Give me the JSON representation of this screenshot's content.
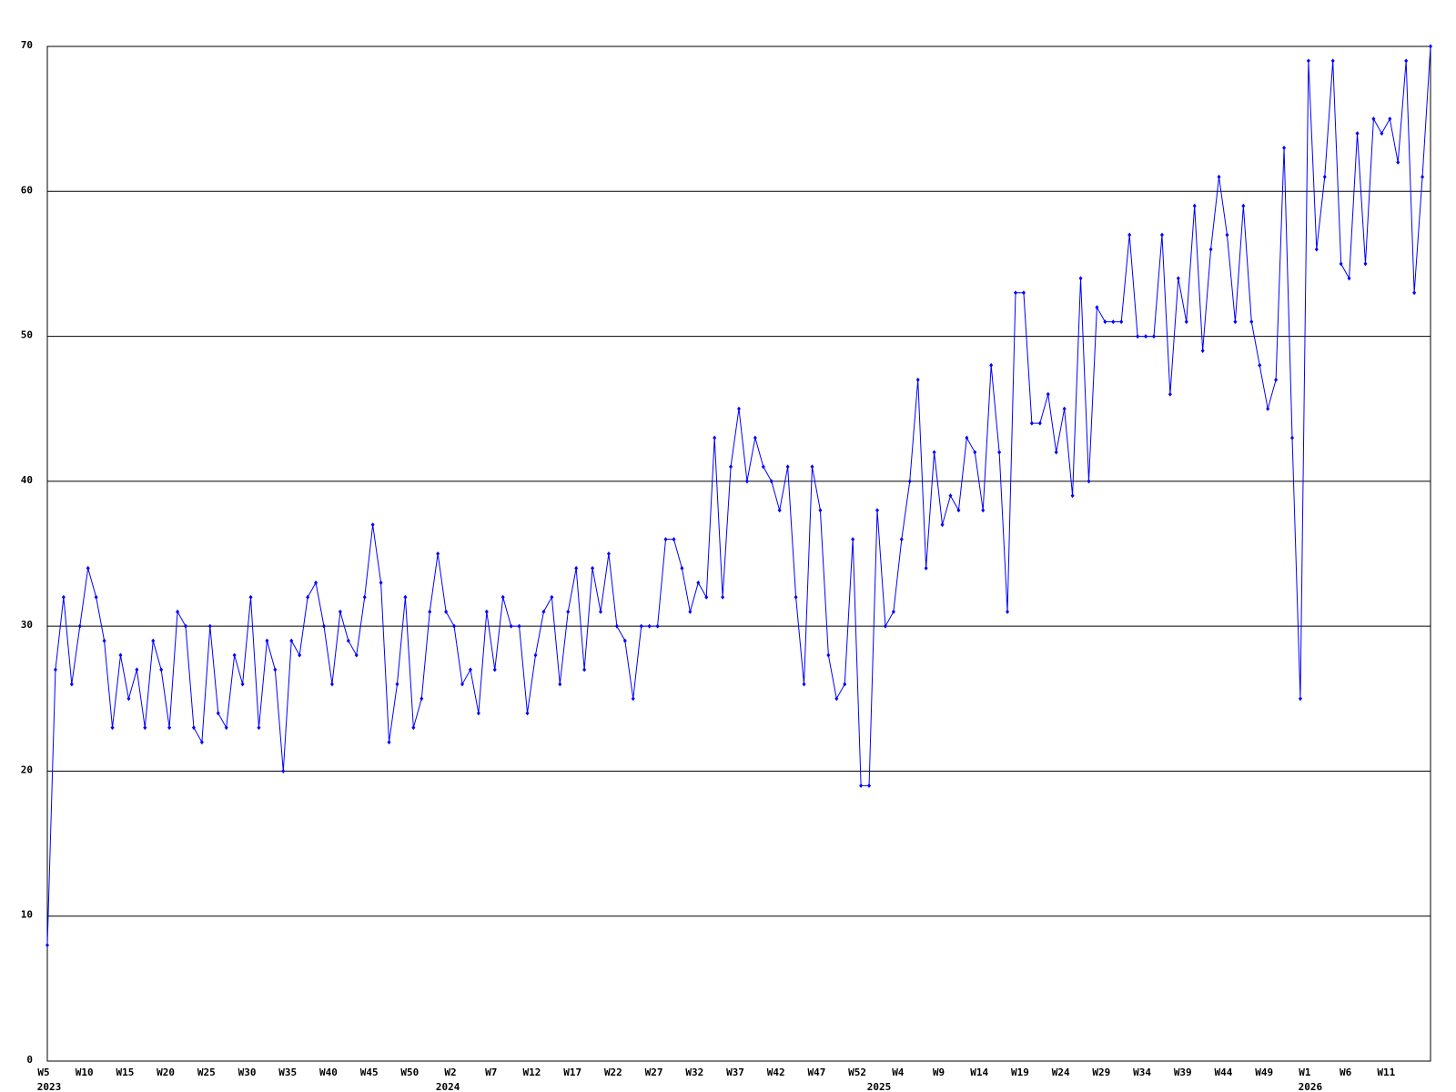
{
  "chart_data": {
    "type": "line",
    "color": "#0000ff",
    "grid": true,
    "ylim": [
      0,
      70
    ],
    "yticks": [
      0,
      10,
      20,
      30,
      40,
      50,
      60,
      70
    ],
    "categories": [
      "W5",
      null,
      null,
      null,
      null,
      "W10",
      null,
      null,
      null,
      null,
      "W15",
      null,
      null,
      null,
      null,
      "W20",
      null,
      null,
      null,
      null,
      "W25",
      null,
      null,
      null,
      null,
      "W30",
      null,
      null,
      null,
      null,
      "W35",
      null,
      null,
      null,
      null,
      "W40",
      null,
      null,
      null,
      null,
      "W45",
      null,
      null,
      null,
      null,
      "W50",
      null,
      null,
      null,
      null,
      "W2",
      null,
      null,
      null,
      null,
      "W7",
      null,
      null,
      null,
      null,
      "W12",
      null,
      null,
      null,
      null,
      "W17",
      null,
      null,
      null,
      null,
      "W22",
      null,
      null,
      null,
      null,
      "W27",
      null,
      null,
      null,
      null,
      "W32",
      null,
      null,
      null,
      null,
      "W37",
      null,
      null,
      null,
      null,
      "W42",
      null,
      null,
      null,
      null,
      "W47",
      null,
      null,
      null,
      null,
      "W52",
      null,
      null,
      null,
      null,
      "W4",
      null,
      null,
      null,
      null,
      "W9",
      null,
      null,
      null,
      null,
      "W14",
      null,
      null,
      null,
      null,
      "W19",
      null,
      null,
      null,
      null,
      "W24",
      null,
      null,
      null,
      null,
      "W29",
      null,
      null,
      null,
      null,
      "W34",
      null,
      null,
      null,
      null,
      "W39",
      null,
      null,
      null,
      null,
      "W44",
      null,
      null,
      null,
      null,
      "W49",
      null,
      null,
      null,
      null,
      "W1",
      null,
      null,
      null,
      null,
      "W6",
      null,
      null,
      null,
      null,
      "W11",
      null,
      null,
      null,
      null,
      null
    ],
    "category_years": [
      "2023",
      null,
      null,
      null,
      null,
      null,
      null,
      null,
      null,
      null,
      null,
      null,
      null,
      null,
      null,
      null,
      null,
      null,
      null,
      null,
      null,
      null,
      null,
      null,
      null,
      null,
      null,
      null,
      null,
      null,
      null,
      null,
      null,
      null,
      null,
      null,
      null,
      null,
      null,
      null,
      null,
      null,
      null,
      null,
      null,
      null,
      null,
      null,
      null,
      "2024",
      null,
      null,
      null,
      null,
      null,
      null,
      null,
      null,
      null,
      null,
      null,
      null,
      null,
      null,
      null,
      null,
      null,
      null,
      null,
      null,
      null,
      null,
      null,
      null,
      null,
      null,
      null,
      null,
      null,
      null,
      null,
      null,
      null,
      null,
      null,
      null,
      null,
      null,
      null,
      null,
      null,
      null,
      null,
      null,
      null,
      null,
      null,
      null,
      null,
      null,
      null,
      null,
      "2025",
      null,
      null,
      null,
      null,
      null,
      null,
      null,
      null,
      null,
      null,
      null,
      null,
      null,
      null,
      null,
      null,
      null,
      null,
      null,
      null,
      null,
      null,
      null,
      null,
      null,
      null,
      null,
      null,
      null,
      null,
      null,
      null,
      null,
      null,
      null,
      null,
      null,
      null,
      null,
      null,
      null,
      null,
      null,
      null,
      null,
      null,
      null,
      null,
      null,
      null,
      null,
      null,
      "2026",
      null,
      null,
      null,
      null,
      null,
      null,
      null,
      null,
      null,
      null,
      null,
      null,
      null,
      null,
      null
    ],
    "values": [
      8,
      27,
      32,
      26,
      30,
      34,
      32,
      29,
      23,
      28,
      25,
      27,
      23,
      29,
      27,
      23,
      31,
      30,
      23,
      22,
      30,
      24,
      23,
      28,
      26,
      32,
      23,
      29,
      27,
      20,
      29,
      28,
      32,
      33,
      30,
      26,
      31,
      29,
      28,
      32,
      37,
      33,
      22,
      26,
      32,
      23,
      25,
      31,
      35,
      31,
      30,
      26,
      27,
      24,
      31,
      27,
      32,
      30,
      30,
      24,
      28,
      31,
      32,
      26,
      31,
      34,
      27,
      34,
      31,
      35,
      30,
      29,
      25,
      30,
      30,
      30,
      36,
      36,
      34,
      31,
      33,
      32,
      43,
      32,
      41,
      45,
      40,
      43,
      41,
      40,
      38,
      41,
      32,
      26,
      41,
      38,
      28,
      25,
      26,
      36,
      19,
      19,
      38,
      30,
      31,
      36,
      40,
      47,
      34,
      42,
      37,
      39,
      38,
      43,
      42,
      38,
      48,
      42,
      31,
      53,
      53,
      44,
      44,
      46,
      42,
      45,
      39,
      54,
      40,
      52,
      51,
      51,
      51,
      57,
      50,
      50,
      50,
      57,
      46,
      54,
      51,
      59,
      49,
      56,
      61,
      57,
      51,
      59,
      51,
      48,
      45,
      47,
      63,
      43,
      25,
      69,
      56,
      61,
      69,
      55,
      54,
      64,
      55,
      65,
      64,
      65,
      62,
      69,
      53,
      61,
      70
    ]
  }
}
